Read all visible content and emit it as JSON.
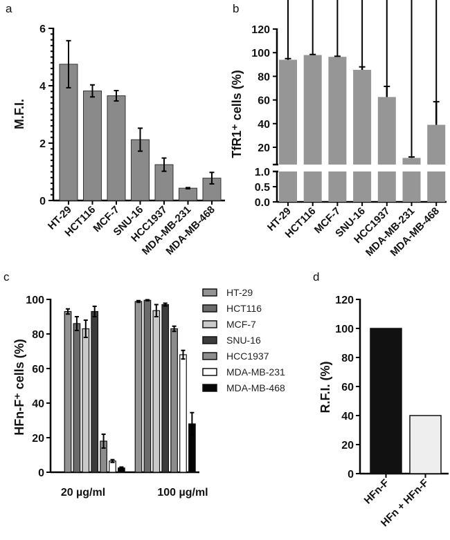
{
  "chart_data": [
    {
      "panel": "a",
      "type": "bar",
      "ylabel": "M.F.I.",
      "ylim": [
        0,
        6
      ],
      "yticks": [
        "0",
        "2",
        "4",
        "6"
      ],
      "categories": [
        "HT-29",
        "HCT116",
        "MCF-7",
        "SNU-16",
        "HCC1937",
        "MDA-MB-231",
        "MDA-MB-468"
      ],
      "values": [
        4.75,
        3.82,
        3.65,
        2.12,
        1.25,
        0.43,
        0.78
      ],
      "errors": [
        0.82,
        0.21,
        0.18,
        0.4,
        0.23,
        0.02,
        0.2
      ],
      "color": "#8a8a8a"
    },
    {
      "panel": "b",
      "type": "bar",
      "ylabel": "TfR1⁺ cells (%)",
      "axis_break": true,
      "ylim_lower": [
        0,
        1.0
      ],
      "ylim_upper": [
        5,
        120
      ],
      "yticks_lower": [
        "0.0",
        "0.5",
        "1.0"
      ],
      "yticks_upper": [
        "20",
        "40",
        "60",
        "80",
        "100",
        "120"
      ],
      "categories": [
        "HT-29",
        "HCT116",
        "MCF-7",
        "SNU-16",
        "HCC1937",
        "MDA-MB-231",
        "MDA-MB-468"
      ],
      "values": [
        94,
        98,
        96.5,
        85.5,
        62.5,
        11,
        39
      ],
      "errors": [
        1,
        0.5,
        0.5,
        2.5,
        9,
        0.8,
        19.5
      ],
      "color": "#969696"
    },
    {
      "panel": "c",
      "type": "bar",
      "ylabel": "HFn-F⁺ cells (%)",
      "ylim": [
        0,
        100
      ],
      "yticks": [
        "0",
        "20",
        "40",
        "60",
        "80",
        "100"
      ],
      "categories": [
        "20 µg/ml",
        "100 µg/ml"
      ],
      "legend": "right",
      "series": [
        {
          "name": "HT-29",
          "values": [
            93,
            98.8
          ],
          "errors": [
            1.5,
            0.5
          ],
          "color": "#939393"
        },
        {
          "name": "HCT116",
          "values": [
            86,
            99.5
          ],
          "errors": [
            4,
            0.3
          ],
          "color": "#6b6b6b"
        },
        {
          "name": "MCF-7",
          "values": [
            83,
            93.5
          ],
          "errors": [
            5,
            3.5
          ],
          "color": "#cacaca"
        },
        {
          "name": "SNU-16",
          "values": [
            93,
            97
          ],
          "errors": [
            3,
            0.8
          ],
          "color": "#3b3b3b"
        },
        {
          "name": "HCC1937",
          "values": [
            18,
            83
          ],
          "errors": [
            4,
            1.5
          ],
          "color": "#8c8c8c"
        },
        {
          "name": "MDA-MB-231",
          "values": [
            6.5,
            68
          ],
          "errors": [
            0.8,
            2.5
          ],
          "color": "#ffffff"
        },
        {
          "name": "MDA-MB-468",
          "values": [
            2.5,
            28
          ],
          "errors": [
            0.5,
            6.5
          ],
          "color": "#050505"
        }
      ]
    },
    {
      "panel": "d",
      "type": "bar",
      "ylabel": "R.F.I. (%)",
      "ylim": [
        0,
        120
      ],
      "yticks": [
        "0",
        "20",
        "40",
        "60",
        "80",
        "100",
        "120"
      ],
      "categories": [
        "HFn-F",
        "HFn + HFn-F"
      ],
      "values": [
        100,
        40
      ],
      "colors": [
        "#111111",
        "#eeeeee"
      ]
    }
  ]
}
